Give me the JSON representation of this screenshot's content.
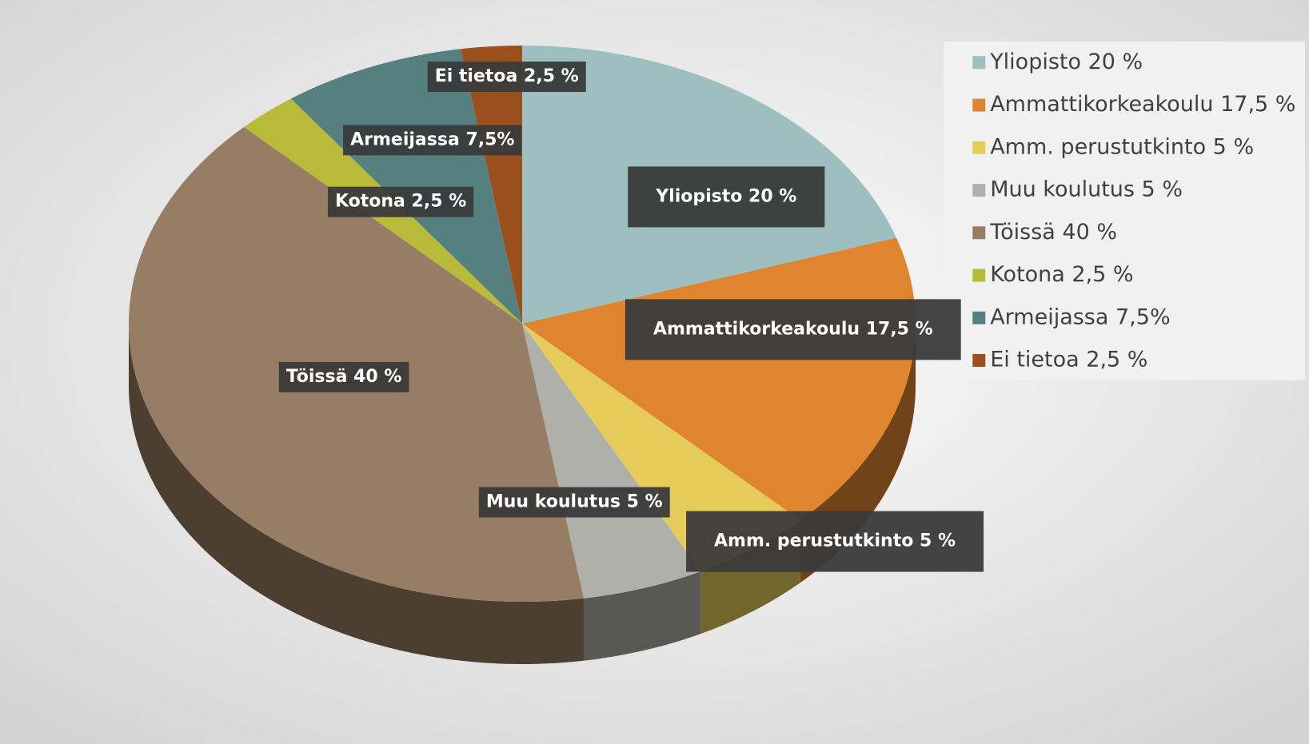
{
  "chart_data": {
    "type": "pie",
    "categories": [
      "Yliopisto 20 %",
      "Ammattikorkeakoulu 17,5 %",
      "Amm. perustutkinto 5 %",
      "Muu koulutus 5 %",
      "Töissä 40 %",
      "Kotona 2,5 %",
      "Armeijassa 7,5%",
      "Ei tietoa 2,5 %"
    ],
    "values": [
      20,
      17.5,
      5,
      5,
      40,
      2.5,
      7.5,
      2.5
    ],
    "colors": [
      "#9dbfc0",
      "#df8530",
      "#e5cc5a",
      "#b0b0aa",
      "#977d63",
      "#b8bb3a",
      "#568080",
      "#9b4f1d"
    ],
    "legend": "top-right"
  }
}
